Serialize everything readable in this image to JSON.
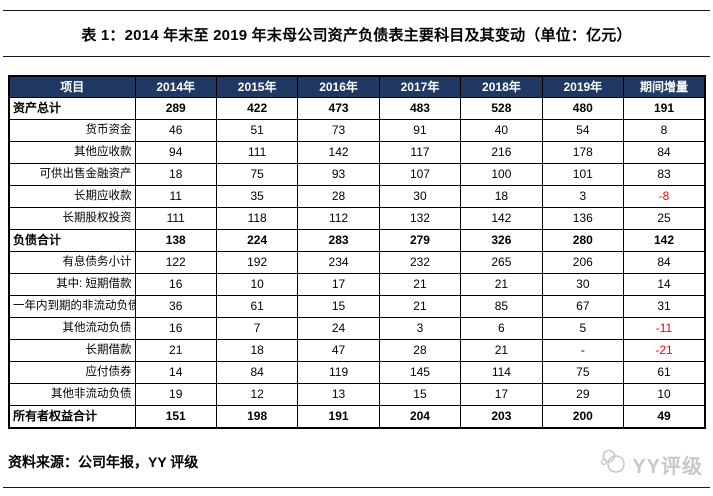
{
  "page": {
    "title": "表 1：2014 年末至 2019 年末母公司资产负债表主要科目及其变动（单位：亿元）",
    "source_note": "资料来源：公司年报，YY 评级",
    "watermark_text": "YY评级"
  },
  "colors": {
    "header_bg": "#1f3864",
    "header_text": "#ffffff",
    "negative": "#ff0000",
    "border": "#000000",
    "watermark": "#c8c8c8"
  },
  "table": {
    "columns": [
      "项目",
      "2014年",
      "2015年",
      "2016年",
      "2017年",
      "2018年",
      "2019年",
      "期间增量"
    ],
    "rows": [
      {
        "label": "资产总计",
        "bold": true,
        "values": [
          "289",
          "422",
          "473",
          "483",
          "528",
          "480",
          "191"
        ]
      },
      {
        "label": "货币资金",
        "bold": false,
        "values": [
          "46",
          "51",
          "73",
          "91",
          "40",
          "54",
          "8"
        ]
      },
      {
        "label": "其他应收款",
        "bold": false,
        "values": [
          "94",
          "111",
          "142",
          "117",
          "216",
          "178",
          "84"
        ]
      },
      {
        "label": "可供出售金融资产",
        "bold": false,
        "values": [
          "18",
          "75",
          "93",
          "107",
          "100",
          "101",
          "83"
        ]
      },
      {
        "label": "长期应收款",
        "bold": false,
        "values": [
          "11",
          "35",
          "28",
          "30",
          "18",
          "3",
          "-8"
        ]
      },
      {
        "label": "长期股权投资",
        "bold": false,
        "values": [
          "111",
          "118",
          "112",
          "132",
          "142",
          "136",
          "25"
        ]
      },
      {
        "label": "负债合计",
        "bold": true,
        "values": [
          "138",
          "224",
          "283",
          "279",
          "326",
          "280",
          "142"
        ]
      },
      {
        "label": "有息债务小计",
        "bold": false,
        "values": [
          "122",
          "192",
          "234",
          "232",
          "265",
          "206",
          "84"
        ]
      },
      {
        "label": "其中: 短期借款",
        "bold": false,
        "values": [
          "16",
          "10",
          "17",
          "21",
          "21",
          "30",
          "14"
        ]
      },
      {
        "label": "一年内到期的非流动负债",
        "bold": false,
        "values": [
          "36",
          "61",
          "15",
          "21",
          "85",
          "67",
          "31"
        ]
      },
      {
        "label": "其他流动负债",
        "bold": false,
        "values": [
          "16",
          "7",
          "24",
          "3",
          "6",
          "5",
          "-11"
        ]
      },
      {
        "label": "长期借款",
        "bold": false,
        "values": [
          "21",
          "18",
          "47",
          "28",
          "21",
          "-",
          "-21"
        ]
      },
      {
        "label": "应付债券",
        "bold": false,
        "values": [
          "14",
          "84",
          "119",
          "145",
          "114",
          "75",
          "61"
        ]
      },
      {
        "label": "其他非流动负债",
        "bold": false,
        "values": [
          "19",
          "12",
          "13",
          "15",
          "17",
          "29",
          "10"
        ]
      },
      {
        "label": "所有者权益合计",
        "bold": true,
        "values": [
          "151",
          "198",
          "191",
          "204",
          "203",
          "200",
          "49"
        ]
      }
    ]
  }
}
